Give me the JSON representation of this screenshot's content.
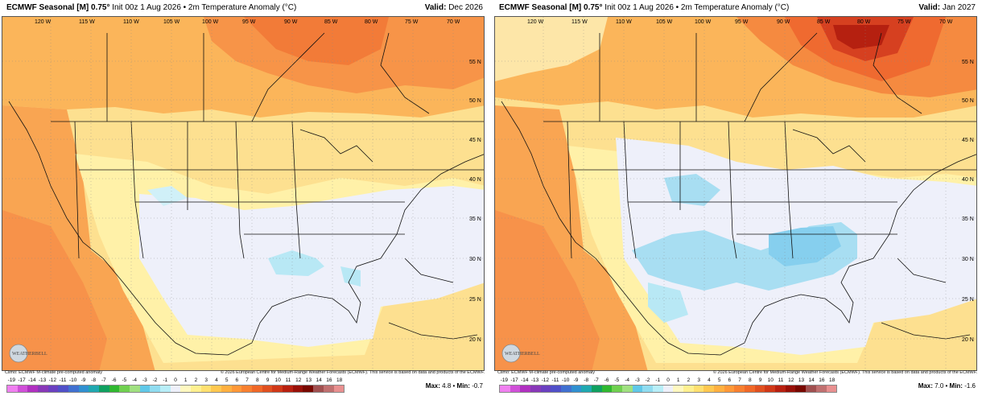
{
  "panels": [
    {
      "title_bold": "ECMWF Seasonal [M] 0.75°",
      "title_rest": "Init 00z 1 Aug 2026 • 2m Temperature Anomaly (°C)",
      "valid_label": "Valid:",
      "valid_value": "Dec 2026",
      "max_label": "Max:",
      "max_value": "4.8",
      "min_label": "Min:",
      "min_value": "-0.7"
    },
    {
      "title_bold": "ECMWF Seasonal [M] 0.75°",
      "title_rest": "Init 00z 1 Aug 2026 • 2m Temperature Anomaly (°C)",
      "valid_label": "Valid:",
      "valid_value": "Jan 2027",
      "max_label": "Max:",
      "max_value": "7.0",
      "min_label": "Min:",
      "min_value": "-1.6"
    }
  ],
  "footer": {
    "left": "Climo: ECMWF M-climate pre-computed anomaly",
    "right": "© 2026 European Centre for Medium-Range Weather Forecasts (ECMWF). This service is based on data and products of the ECMWF."
  },
  "logo_text": "WEATHERBELL",
  "longitude_labels": [
    "120 W",
    "115 W",
    "110 W",
    "105 W",
    "100 W",
    "95 W",
    "90 W",
    "85 W",
    "80 W",
    "75 W",
    "70 W"
  ],
  "latitude_labels": [
    "55 N",
    "50 N",
    "45 N",
    "40 N",
    "35 N",
    "30 N",
    "25 N",
    "20 N"
  ],
  "colorbar": {
    "ticks": [
      "-19",
      "-17",
      "-14",
      "-13",
      "-12",
      "-11",
      "-10",
      "-9",
      "-8",
      "-7",
      "-6",
      "-5",
      "-4",
      "-3",
      "-2",
      "-1",
      "0",
      "1",
      "2",
      "3",
      "4",
      "5",
      "6",
      "7",
      "8",
      "9",
      "10",
      "11",
      "12",
      "13",
      "14",
      "16",
      "18"
    ],
    "colors": [
      "#f080f0",
      "#d050d8",
      "#b030c0",
      "#8838b8",
      "#6a40c0",
      "#5050c8",
      "#4070d0",
      "#3090d0",
      "#20a8b0",
      "#10a060",
      "#30b830",
      "#70d050",
      "#a0e080",
      "#60c8e8",
      "#90dcf0",
      "#b8eef8",
      "#eef0fa",
      "#fff8c0",
      "#fff090",
      "#ffe070",
      "#ffc850",
      "#ffb040",
      "#ff9838",
      "#f88030",
      "#f06828",
      "#e05020",
      "#d03818",
      "#b82010",
      "#981008",
      "#780800",
      "#a05050",
      "#c07070",
      "#e89090"
    ]
  },
  "maps": [
    {
      "month": "Dec 2026",
      "dominant_anomaly": "warm north and west, near-normal to slightly cool southeast and Gulf"
    },
    {
      "month": "Jan 2027",
      "dominant_anomaly": "strong warm anomaly over Ontario/Great Lakes, cool southern plains and Gulf coast"
    }
  ]
}
